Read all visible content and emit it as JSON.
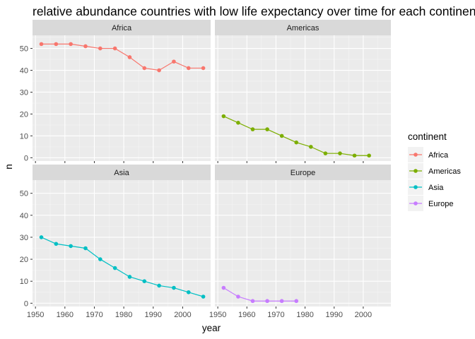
{
  "chart_data": {
    "type": "line",
    "title": "relative abundance countries with low life expectancy over time for each continent",
    "xlabel": "year",
    "ylabel": "n",
    "xlim": [
      1949,
      2009.5
    ],
    "ylim": [
      -1.5,
      56
    ],
    "x_ticks": [
      1950,
      1960,
      1970,
      1980,
      1990,
      2000
    ],
    "y_ticks": [
      0,
      10,
      20,
      30,
      40,
      50
    ],
    "grid": true,
    "legend": {
      "title": "continent",
      "placement": "right"
    },
    "facets": [
      "Africa",
      "Americas",
      "Asia",
      "Europe"
    ],
    "series": [
      {
        "name": "Africa",
        "color": "#F8766D",
        "x": [
          1952,
          1957,
          1962,
          1967,
          1972,
          1977,
          1982,
          1987,
          1992,
          1997,
          2002,
          2007
        ],
        "y": [
          52,
          52,
          52,
          51,
          50,
          50,
          46,
          41,
          40,
          44,
          41,
          41
        ]
      },
      {
        "name": "Americas",
        "color": "#7CAE00",
        "x": [
          1952,
          1957,
          1962,
          1967,
          1972,
          1977,
          1982,
          1987,
          1992,
          1997,
          2002
        ],
        "y": [
          19,
          16,
          13,
          13,
          10,
          7,
          5,
          2,
          2,
          1,
          1
        ]
      },
      {
        "name": "Asia",
        "color": "#00BFC4",
        "x": [
          1952,
          1957,
          1962,
          1967,
          1972,
          1977,
          1982,
          1987,
          1992,
          1997,
          2002,
          2007
        ],
        "y": [
          30,
          27,
          26,
          25,
          20,
          16,
          12,
          10,
          8,
          7,
          5,
          3
        ]
      },
      {
        "name": "Europe",
        "color": "#C77CFF",
        "x": [
          1952,
          1957,
          1962,
          1967,
          1972,
          1977
        ],
        "y": [
          7,
          3,
          1,
          1,
          1,
          1
        ]
      }
    ]
  }
}
